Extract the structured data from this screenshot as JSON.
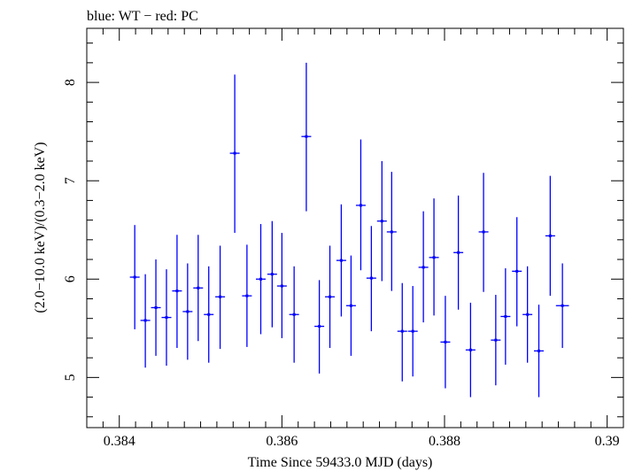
{
  "chart_data": {
    "type": "scatter",
    "title": "blue: WT − red: PC",
    "xlabel": "Time Since 59433.0 MJD (days)",
    "ylabel": "(2.0−10.0 keV)/(0.3−2.0 keV)",
    "xlim": [
      0.3836,
      0.3902
    ],
    "ylim": [
      4.49,
      8.55
    ],
    "x_ticks": [
      0.384,
      0.386,
      0.388,
      0.39
    ],
    "x_tick_labels": [
      "0.384",
      "0.386",
      "0.388",
      "0.39"
    ],
    "y_ticks": [
      5,
      6,
      7,
      8
    ],
    "y_tick_labels": [
      "5",
      "6",
      "7",
      "8"
    ],
    "grid": false,
    "series": [
      {
        "color": "#0000ff",
        "points": [
          {
            "x": 0.38419,
            "xerr": 6e-05,
            "y": 6.02,
            "ylo": 5.49,
            "yhi": 6.55
          },
          {
            "x": 0.38432,
            "xerr": 6e-05,
            "y": 5.58,
            "ylo": 5.1,
            "yhi": 6.05
          },
          {
            "x": 0.38445,
            "xerr": 6e-05,
            "y": 5.71,
            "ylo": 5.22,
            "yhi": 6.2
          },
          {
            "x": 0.38458,
            "xerr": 6e-05,
            "y": 5.61,
            "ylo": 5.12,
            "yhi": 6.1
          },
          {
            "x": 0.38471,
            "xerr": 6e-05,
            "y": 5.88,
            "ylo": 5.3,
            "yhi": 6.45
          },
          {
            "x": 0.38484,
            "xerr": 6e-05,
            "y": 5.67,
            "ylo": 5.18,
            "yhi": 6.16
          },
          {
            "x": 0.38497,
            "xerr": 6e-05,
            "y": 5.91,
            "ylo": 5.37,
            "yhi": 6.45
          },
          {
            "x": 0.3851,
            "xerr": 6e-05,
            "y": 5.64,
            "ylo": 5.15,
            "yhi": 6.13
          },
          {
            "x": 0.38524,
            "xerr": 6e-05,
            "y": 5.82,
            "ylo": 5.29,
            "yhi": 6.34
          },
          {
            "x": 0.38542,
            "xerr": 6e-05,
            "y": 7.28,
            "ylo": 6.47,
            "yhi": 8.08
          },
          {
            "x": 0.38557,
            "xerr": 6e-05,
            "y": 5.83,
            "ylo": 5.31,
            "yhi": 6.35
          },
          {
            "x": 0.38574,
            "xerr": 6e-05,
            "y": 6.0,
            "ylo": 5.44,
            "yhi": 6.56
          },
          {
            "x": 0.38588,
            "xerr": 6e-05,
            "y": 6.05,
            "ylo": 5.51,
            "yhi": 6.59
          },
          {
            "x": 0.386,
            "xerr": 6e-05,
            "y": 5.93,
            "ylo": 5.4,
            "yhi": 6.47
          },
          {
            "x": 0.38615,
            "xerr": 6e-05,
            "y": 5.64,
            "ylo": 5.15,
            "yhi": 6.13
          },
          {
            "x": 0.3863,
            "xerr": 6e-05,
            "y": 7.45,
            "ylo": 6.69,
            "yhi": 8.2
          },
          {
            "x": 0.38646,
            "xerr": 6e-05,
            "y": 5.52,
            "ylo": 5.04,
            "yhi": 5.99
          },
          {
            "x": 0.38659,
            "xerr": 6e-05,
            "y": 5.82,
            "ylo": 5.3,
            "yhi": 6.34
          },
          {
            "x": 0.38673,
            "xerr": 6e-05,
            "y": 6.19,
            "ylo": 5.62,
            "yhi": 6.76
          },
          {
            "x": 0.38685,
            "xerr": 6e-05,
            "y": 5.73,
            "ylo": 5.22,
            "yhi": 6.24
          },
          {
            "x": 0.38697,
            "xerr": 6e-05,
            "y": 6.75,
            "ylo": 6.09,
            "yhi": 7.42
          },
          {
            "x": 0.3871,
            "xerr": 6e-05,
            "y": 6.01,
            "ylo": 5.47,
            "yhi": 6.54
          },
          {
            "x": 0.38723,
            "xerr": 6e-05,
            "y": 6.59,
            "ylo": 5.98,
            "yhi": 7.2
          },
          {
            "x": 0.38735,
            "xerr": 6e-05,
            "y": 6.48,
            "ylo": 5.88,
            "yhi": 7.09
          },
          {
            "x": 0.38748,
            "xerr": 6e-05,
            "y": 5.47,
            "ylo": 4.96,
            "yhi": 5.96
          },
          {
            "x": 0.38761,
            "xerr": 6e-05,
            "y": 5.47,
            "ylo": 5.01,
            "yhi": 5.93
          },
          {
            "x": 0.38774,
            "xerr": 6e-05,
            "y": 6.12,
            "ylo": 5.56,
            "yhi": 6.69
          },
          {
            "x": 0.38787,
            "xerr": 6e-05,
            "y": 6.22,
            "ylo": 5.63,
            "yhi": 6.82
          },
          {
            "x": 0.38801,
            "xerr": 6e-05,
            "y": 5.36,
            "ylo": 4.89,
            "yhi": 5.83
          },
          {
            "x": 0.38817,
            "xerr": 6e-05,
            "y": 6.27,
            "ylo": 5.69,
            "yhi": 6.85
          },
          {
            "x": 0.38832,
            "xerr": 6e-05,
            "y": 5.28,
            "ylo": 4.8,
            "yhi": 5.76
          },
          {
            "x": 0.38848,
            "xerr": 6e-05,
            "y": 6.48,
            "ylo": 5.87,
            "yhi": 7.08
          },
          {
            "x": 0.38863,
            "xerr": 6e-05,
            "y": 5.38,
            "ylo": 4.92,
            "yhi": 5.84
          },
          {
            "x": 0.38875,
            "xerr": 6e-05,
            "y": 5.62,
            "ylo": 5.13,
            "yhi": 6.11
          },
          {
            "x": 0.38889,
            "xerr": 6e-05,
            "y": 6.08,
            "ylo": 5.52,
            "yhi": 6.63
          },
          {
            "x": 0.38902,
            "xerr": 6e-05,
            "y": 5.64,
            "ylo": 5.15,
            "yhi": 6.13
          },
          {
            "x": 0.38916,
            "xerr": 6e-05,
            "y": 5.27,
            "ylo": 4.8,
            "yhi": 5.74
          },
          {
            "x": 0.3893,
            "xerr": 6e-05,
            "y": 6.44,
            "ylo": 5.83,
            "yhi": 7.05
          },
          {
            "x": 0.38945,
            "xerr": 8e-05,
            "y": 5.73,
            "ylo": 5.3,
            "yhi": 6.16
          }
        ]
      }
    ]
  }
}
